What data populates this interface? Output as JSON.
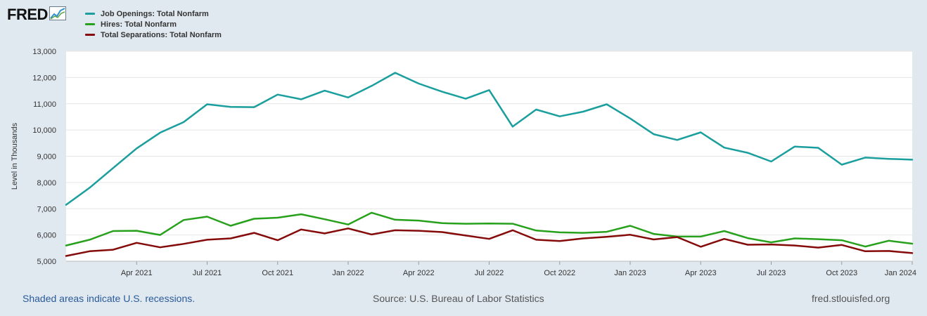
{
  "logo": {
    "text": "FRED"
  },
  "chart_data": {
    "type": "line",
    "title": "",
    "xlabel": "",
    "ylabel": "Level in Thousands",
    "ylim": [
      5000,
      13000
    ],
    "yticks": [
      5000,
      6000,
      7000,
      8000,
      9000,
      10000,
      11000,
      12000,
      13000
    ],
    "ytick_labels": [
      "5,000",
      "6,000",
      "7,000",
      "8,000",
      "9,000",
      "10,000",
      "11,000",
      "12,000",
      "13,000"
    ],
    "x_start": "2021-01",
    "x_count": 37,
    "xtick_indices": [
      3,
      6,
      9,
      12,
      15,
      18,
      21,
      24,
      27,
      30,
      33,
      36
    ],
    "xtick_labels": [
      "Apr 2021",
      "Jul 2021",
      "Oct 2021",
      "Jan 2022",
      "Apr 2022",
      "Jul 2022",
      "Oct 2022",
      "Jan 2023",
      "Apr 2023",
      "Jul 2023",
      "Oct 2023",
      "Jan 2024"
    ],
    "grid": true,
    "legend_position": "top-left",
    "series": [
      {
        "name": "Job Openings: Total Nonfarm",
        "color": "#1a9e9e",
        "values": [
          7150,
          7800,
          8550,
          9300,
          9900,
          10300,
          10980,
          10880,
          10870,
          11350,
          11170,
          11500,
          11240,
          11680,
          12180,
          11770,
          11460,
          11190,
          11520,
          10130,
          10780,
          10520,
          10700,
          10980,
          10440,
          9840,
          9620,
          9910,
          9330,
          9130,
          8800,
          9370,
          9320,
          8680,
          8950,
          8900,
          8870
        ]
      },
      {
        "name": "Hires: Total Nonfarm",
        "color": "#27a11c",
        "values": [
          5600,
          5820,
          6150,
          6160,
          6000,
          6570,
          6700,
          6350,
          6620,
          6660,
          6790,
          6600,
          6400,
          6850,
          6580,
          6550,
          6450,
          6430,
          6440,
          6430,
          6170,
          6100,
          6080,
          6120,
          6350,
          6040,
          5940,
          5940,
          6150,
          5880,
          5720,
          5870,
          5840,
          5800,
          5560,
          5780,
          5670
        ]
      },
      {
        "name": "Total Separations: Total Nonfarm",
        "color": "#850a0a",
        "values": [
          5200,
          5380,
          5440,
          5700,
          5530,
          5660,
          5820,
          5870,
          6080,
          5800,
          6210,
          6060,
          6250,
          6020,
          6180,
          6160,
          6110,
          5980,
          5850,
          6180,
          5820,
          5770,
          5870,
          5930,
          6010,
          5830,
          5920,
          5550,
          5850,
          5630,
          5640,
          5600,
          5520,
          5620,
          5380,
          5390,
          5310
        ]
      }
    ]
  },
  "footer": {
    "recessions_note": "Shaded areas indicate U.S. recessions.",
    "source": "Source: U.S. Bureau of Labor Statistics",
    "site": "fred.stlouisfed.org"
  }
}
